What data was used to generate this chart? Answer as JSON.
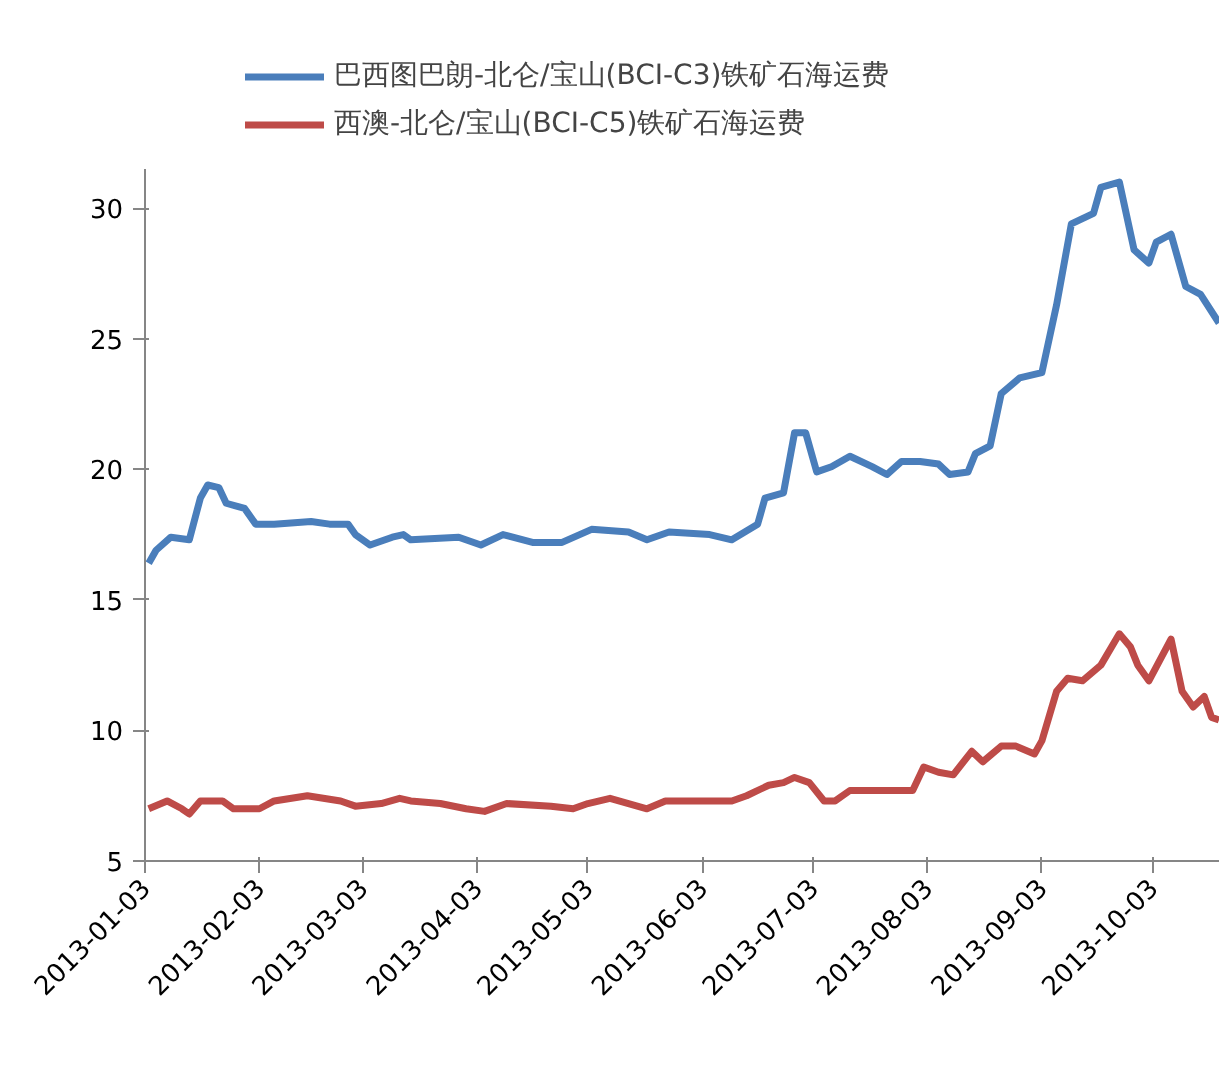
{
  "chart_data": {
    "type": "line",
    "legend": "top",
    "grid": false,
    "marker": "none",
    "line_style": "solid",
    "xlim": [
      "2013-01-03",
      "2013-10-21"
    ],
    "ylim": [
      5,
      31.5
    ],
    "xticks": [
      "2013-01-03",
      "2013-02-03",
      "2013-03-03",
      "2013-04-03",
      "2013-05-03",
      "2013-06-03",
      "2013-07-03",
      "2013-08-03",
      "2013-09-03",
      "2013-10-03"
    ],
    "yticks": [
      5,
      10,
      15,
      20,
      25,
      30
    ],
    "series": [
      {
        "name": "巴西图巴朗-北仑/宝山(BCI-C3)铁矿石海运费",
        "color": "#4a7ebb",
        "x": [
          "2013-01-04",
          "2013-01-06",
          "2013-01-10",
          "2013-01-15",
          "2013-01-18",
          "2013-01-20",
          "2013-01-23",
          "2013-01-25",
          "2013-01-30",
          "2013-02-02",
          "2013-02-07",
          "2013-02-17",
          "2013-02-22",
          "2013-02-27",
          "2013-03-01",
          "2013-03-05",
          "2013-03-11",
          "2013-03-14",
          "2013-03-16",
          "2013-03-29",
          "2013-04-04",
          "2013-04-10",
          "2013-04-18",
          "2013-04-26",
          "2013-05-04",
          "2013-05-14",
          "2013-05-19",
          "2013-05-25",
          "2013-06-05",
          "2013-06-11",
          "2013-06-18",
          "2013-06-20",
          "2013-06-25",
          "2013-06-28",
          "2013-07-01",
          "2013-07-04",
          "2013-07-08",
          "2013-07-13",
          "2013-07-19",
          "2013-07-23",
          "2013-07-27",
          "2013-08-01",
          "2013-08-06",
          "2013-08-09",
          "2013-08-14",
          "2013-08-16",
          "2013-08-20",
          "2013-08-23",
          "2013-08-28",
          "2013-09-03",
          "2013-09-07",
          "2013-09-11",
          "2013-09-17",
          "2013-09-19",
          "2013-09-24",
          "2013-09-28",
          "2013-10-02",
          "2013-10-04",
          "2013-10-08",
          "2013-10-12",
          "2013-10-16",
          "2013-10-21"
        ],
        "values": [
          16.4,
          16.9,
          17.4,
          17.3,
          18.9,
          19.4,
          19.3,
          18.7,
          18.5,
          17.9,
          17.9,
          18.0,
          17.9,
          17.9,
          17.5,
          17.1,
          17.4,
          17.5,
          17.3,
          17.4,
          17.1,
          17.5,
          17.2,
          17.2,
          17.7,
          17.6,
          17.3,
          17.6,
          17.5,
          17.3,
          17.9,
          18.9,
          19.1,
          21.4,
          21.4,
          19.9,
          20.1,
          20.5,
          20.1,
          19.8,
          20.3,
          20.3,
          20.2,
          19.8,
          19.9,
          20.6,
          20.9,
          22.9,
          23.5,
          23.7,
          26.3,
          29.4,
          29.8,
          30.8,
          31.0,
          28.4,
          27.9,
          28.7,
          29.0,
          27.0,
          26.7,
          25.6
        ]
      },
      {
        "name": "西澳-北仑/宝山(BCI-C5)铁矿石海运费",
        "color": "#be4b48",
        "x": [
          "2013-01-04",
          "2013-01-09",
          "2013-01-13",
          "2013-01-15",
          "2013-01-18",
          "2013-01-24",
          "2013-01-27",
          "2013-02-03",
          "2013-02-07",
          "2013-02-16",
          "2013-02-25",
          "2013-03-01",
          "2013-03-08",
          "2013-03-13",
          "2013-03-16",
          "2013-03-24",
          "2013-03-31",
          "2013-04-05",
          "2013-04-11",
          "2013-04-23",
          "2013-04-29",
          "2013-05-03",
          "2013-05-09",
          "2013-05-14",
          "2013-05-19",
          "2013-05-24",
          "2013-06-02",
          "2013-06-11",
          "2013-06-15",
          "2013-06-21",
          "2013-06-25",
          "2013-06-28",
          "2013-07-02",
          "2013-07-06",
          "2013-07-09",
          "2013-07-13",
          "2013-07-20",
          "2013-07-30",
          "2013-08-02",
          "2013-08-06",
          "2013-08-10",
          "2013-08-15",
          "2013-08-18",
          "2013-08-23",
          "2013-08-27",
          "2013-09-01",
          "2013-09-03",
          "2013-09-07",
          "2013-09-10",
          "2013-09-14",
          "2013-09-19",
          "2013-09-24",
          "2013-09-27",
          "2013-09-29",
          "2013-10-02",
          "2013-10-08",
          "2013-10-11",
          "2013-10-14",
          "2013-10-17",
          "2013-10-19",
          "2013-10-21"
        ],
        "values": [
          7.0,
          7.3,
          7.0,
          6.8,
          7.3,
          7.3,
          7.0,
          7.0,
          7.3,
          7.5,
          7.3,
          7.1,
          7.2,
          7.4,
          7.3,
          7.2,
          7.0,
          6.9,
          7.2,
          7.1,
          7.0,
          7.2,
          7.4,
          7.2,
          7.0,
          7.3,
          7.3,
          7.3,
          7.5,
          7.9,
          8.0,
          8.2,
          8.0,
          7.3,
          7.3,
          7.7,
          7.7,
          7.7,
          8.6,
          8.4,
          8.3,
          9.2,
          8.8,
          9.4,
          9.4,
          9.1,
          9.6,
          11.5,
          12.0,
          11.9,
          12.5,
          13.7,
          13.2,
          12.5,
          11.9,
          13.5,
          11.5,
          10.9,
          11.3,
          10.5,
          10.4
        ]
      }
    ]
  }
}
